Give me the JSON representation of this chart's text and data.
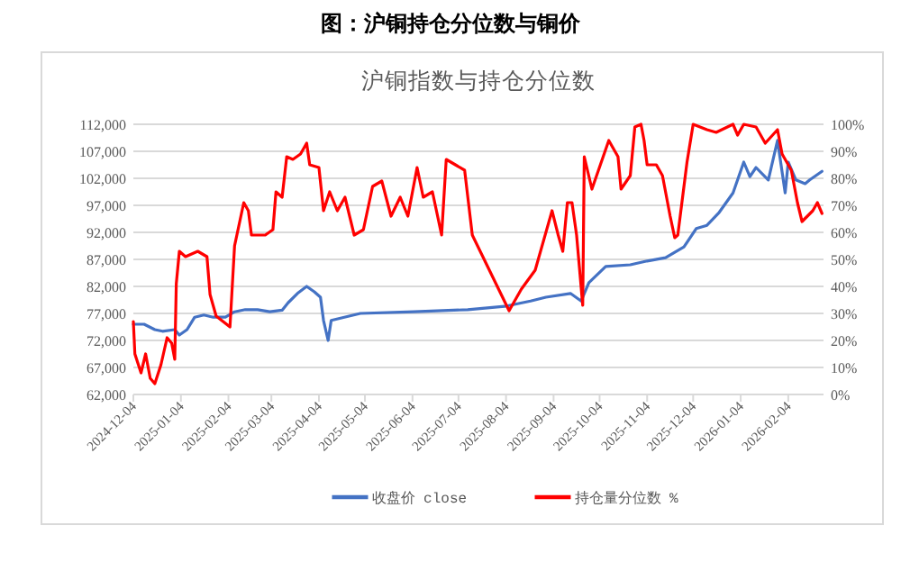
{
  "chart_data": {
    "type": "line",
    "title": "图：沪铜持仓分位数与铜价",
    "subtitle": "沪铜指数与持仓分位数",
    "xlim": [
      "2024-12-04",
      "2026-02-27"
    ],
    "xticks": [
      "2024-12-04",
      "2025-01-04",
      "2025-02-04",
      "2025-03-04",
      "2025-04-04",
      "2025-05-04",
      "2025-06-04",
      "2025-07-04",
      "2025-08-04",
      "2025-09-04",
      "2025-10-04",
      "2025-11-04",
      "2025-12-04",
      "2026-01-04",
      "2026-02-04"
    ],
    "ylim": [
      62000,
      112000
    ],
    "yticks": [
      {
        "value": 62000,
        "label": "62,000"
      },
      {
        "value": 67000,
        "label": "67,000"
      },
      {
        "value": 72000,
        "label": "72,000"
      },
      {
        "value": 77000,
        "label": "77,000"
      },
      {
        "value": 82000,
        "label": "82,000"
      },
      {
        "value": 87000,
        "label": "87,000"
      },
      {
        "value": 92000,
        "label": "92,000"
      },
      {
        "value": 97000,
        "label": "97,000"
      },
      {
        "value": 102000,
        "label": "102,000"
      },
      {
        "value": 107000,
        "label": "107,000"
      },
      {
        "value": 112000,
        "label": "112,000"
      }
    ],
    "y2lim": [
      0,
      100
    ],
    "y2ticks": [
      {
        "value": 0,
        "label": "0%"
      },
      {
        "value": 10,
        "label": "10%"
      },
      {
        "value": 20,
        "label": "20%"
      },
      {
        "value": 30,
        "label": "30%"
      },
      {
        "value": 40,
        "label": "40%"
      },
      {
        "value": 50,
        "label": "50%"
      },
      {
        "value": 60,
        "label": "60%"
      },
      {
        "value": 70,
        "label": "70%"
      },
      {
        "value": 80,
        "label": "80%"
      },
      {
        "value": 90,
        "label": "90%"
      },
      {
        "value": 100,
        "label": "100%"
      }
    ],
    "grid": "y",
    "legend": "bottom",
    "marker": "none",
    "line_style": "solid",
    "series": [
      {
        "name": "收盘价 close",
        "color": "#4472c4",
        "x": [
          "2024-12-04",
          "2024-12-11",
          "2024-12-18",
          "2024-12-23",
          "2024-12-31",
          "2025-01-03",
          "2025-01-08",
          "2025-01-13",
          "2025-01-19",
          "2025-01-25",
          "2025-02-02",
          "2025-02-08",
          "2025-02-15",
          "2025-02-23",
          "2025-03-03",
          "2025-03-11",
          "2025-03-15",
          "2025-03-21",
          "2025-03-27",
          "2025-04-01",
          "2025-04-05",
          "2025-04-07",
          "2025-04-10",
          "2025-04-12",
          "2025-05-01",
          "2025-06-05",
          "2025-07-10",
          "2025-08-03",
          "2025-08-20",
          "2025-08-30",
          "2025-09-15",
          "2025-09-22",
          "2025-09-27",
          "2025-10-08",
          "2025-10-24",
          "2025-11-04",
          "2025-11-16",
          "2025-11-28",
          "2025-12-06",
          "2025-12-13",
          "2025-12-21",
          "2025-12-30",
          "2026-01-06",
          "2026-01-10",
          "2026-01-14",
          "2026-01-22",
          "2026-01-28",
          "2026-02-02",
          "2026-02-04",
          "2026-02-09",
          "2026-02-15",
          "2026-02-18",
          "2026-02-26"
        ],
        "values": [
          75000,
          75000,
          74000,
          73700,
          74000,
          73000,
          74000,
          76300,
          76700,
          76300,
          76300,
          77300,
          77700,
          77700,
          77300,
          77600,
          79000,
          80700,
          82000,
          81000,
          80000,
          75700,
          72000,
          75700,
          77000,
          77300,
          77700,
          78300,
          79300,
          80000,
          80700,
          79300,
          82700,
          85700,
          86000,
          86700,
          87300,
          89300,
          92700,
          93300,
          95700,
          99300,
          105000,
          102300,
          104000,
          101700,
          109000,
          99300,
          105000,
          101700,
          101000,
          101700,
          103300
        ]
      },
      {
        "name": "持仓量分位数 %",
        "color": "#ff0000",
        "axis": "y2",
        "x": [
          "2024-12-04",
          "2024-12-05",
          "2024-12-09",
          "2024-12-12",
          "2024-12-15",
          "2024-12-18",
          "2024-12-22",
          "2024-12-26",
          "2024-12-29",
          "2024-12-31",
          "2025-01-01",
          "2025-01-03",
          "2025-01-07",
          "2025-01-15",
          "2025-01-21",
          "2025-01-23",
          "2025-01-27",
          "2025-02-05",
          "2025-02-08",
          "2025-02-14",
          "2025-02-17",
          "2025-02-19",
          "2025-02-28",
          "2025-03-05",
          "2025-03-07",
          "2025-03-11",
          "2025-03-14",
          "2025-03-18",
          "2025-03-23",
          "2025-03-27",
          "2025-03-29",
          "2025-04-04",
          "2025-04-07",
          "2025-04-11",
          "2025-04-16",
          "2025-04-21",
          "2025-04-27",
          "2025-05-03",
          "2025-05-09",
          "2025-05-15",
          "2025-05-21",
          "2025-05-27",
          "2025-06-01",
          "2025-06-07",
          "2025-06-11",
          "2025-06-17",
          "2025-06-23",
          "2025-06-26",
          "2025-07-02",
          "2025-07-08",
          "2025-07-13",
          "2025-08-06",
          "2025-08-14",
          "2025-08-23",
          "2025-09-03",
          "2025-09-07",
          "2025-09-10",
          "2025-09-13",
          "2025-09-16",
          "2025-09-19",
          "2025-09-23",
          "2025-09-24",
          "2025-09-29",
          "2025-10-10",
          "2025-10-16",
          "2025-10-18",
          "2025-10-24",
          "2025-10-27",
          "2025-10-31",
          "2025-11-02",
          "2025-11-04",
          "2025-11-10",
          "2025-11-14",
          "2025-11-19",
          "2025-11-22",
          "2025-11-24",
          "2025-11-30",
          "2025-12-04",
          "2025-12-13",
          "2025-12-19",
          "2025-12-30",
          "2026-01-02",
          "2026-01-06",
          "2026-01-14",
          "2026-01-20",
          "2026-01-28",
          "2026-01-31",
          "2026-02-06",
          "2026-02-10",
          "2026-02-13",
          "2026-02-20",
          "2026-02-23",
          "2026-02-26"
        ],
        "values": [
          27,
          15,
          8,
          15,
          6,
          4,
          11,
          21,
          19,
          13,
          41,
          53,
          51,
          53,
          51,
          37,
          29,
          25,
          55,
          71,
          68,
          59,
          59,
          61,
          75,
          73,
          88,
          87,
          89,
          93,
          85,
          84,
          68,
          75,
          68,
          73,
          59,
          61,
          77,
          79,
          66,
          73,
          66,
          84,
          73,
          75,
          59,
          87,
          85,
          83,
          59,
          31,
          39,
          46,
          68,
          59,
          53,
          71,
          71,
          59,
          33,
          88,
          76,
          94,
          88,
          76,
          81,
          99,
          100,
          94,
          85,
          85,
          81,
          66,
          58,
          59,
          86,
          100,
          98,
          97,
          100,
          96,
          100,
          99,
          93,
          98,
          89,
          83,
          71,
          64,
          68,
          71,
          67
        ]
      }
    ]
  }
}
